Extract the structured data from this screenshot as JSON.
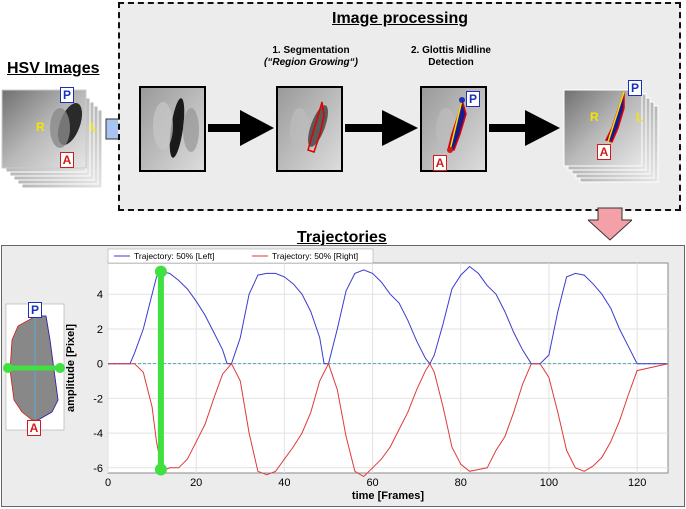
{
  "hsv": {
    "title": "HSV Images",
    "label_p": "P",
    "label_r": "R",
    "label_l": "L",
    "label_a": "A"
  },
  "processing": {
    "title": "Image processing",
    "step1_line1": "1. Segmentation",
    "step1_line2": "(“Region Growing“)",
    "step2_line1": "2. Glottis Midline",
    "step2_line2": "Detection",
    "result_p": "P",
    "result_r": "R",
    "result_l": "L",
    "result_a": "A"
  },
  "trajectories": {
    "title": "Trajectories",
    "inset_p": "P",
    "inset_a": "A"
  },
  "colors": {
    "left": "#3b3bd0",
    "right": "#e03a3a",
    "highlight": "#3fe03f",
    "arrow_fill": "#a8c4f0",
    "down_arrow_fill": "#f4a0a8"
  },
  "chart_data": {
    "type": "line",
    "title": "",
    "xlabel": "time [Frames]",
    "ylabel": "amplitude [Pixel]",
    "xlim": [
      0,
      127
    ],
    "ylim": [
      -6.3,
      5.8
    ],
    "xticks": [
      0,
      20,
      40,
      60,
      80,
      100,
      120
    ],
    "yticks": [
      4,
      2,
      0,
      -2,
      -4,
      -6
    ],
    "xtick_labels": [
      "0",
      "20",
      "40",
      "60",
      "80",
      "100",
      "120"
    ],
    "ytick_labels": [
      "4",
      "2",
      "0",
      "-2",
      "-4",
      "-6"
    ],
    "grid": true,
    "legend_position": "top",
    "series": [
      {
        "name": "Trajectory: 50% [Left]",
        "x": [
          0,
          5,
          6,
          8,
          10,
          11,
          12,
          14,
          16,
          18,
          20,
          22,
          24,
          26,
          27,
          28,
          30,
          32,
          34,
          36,
          38,
          40,
          42,
          44,
          46,
          48,
          49,
          50,
          52,
          54,
          56,
          58,
          60,
          62,
          64,
          66,
          68,
          70,
          72,
          73,
          74,
          76,
          78,
          80,
          82,
          84,
          86,
          88,
          90,
          92,
          94,
          96,
          97,
          98,
          100,
          102,
          104,
          106,
          108,
          110,
          112,
          114,
          116,
          118,
          120,
          127
        ],
        "y": [
          0,
          0,
          0.6,
          2.0,
          4.0,
          5.0,
          5.3,
          5.2,
          4.8,
          4.3,
          3.6,
          2.8,
          1.8,
          0.8,
          0,
          0,
          1.5,
          4.0,
          5.1,
          5.2,
          5.2,
          5.0,
          4.6,
          4.0,
          3.0,
          1.5,
          0,
          0,
          2.0,
          4.2,
          5.2,
          5.4,
          5.2,
          4.7,
          4.0,
          3.5,
          2.5,
          1.3,
          0.3,
          0,
          0.5,
          2.3,
          4.3,
          5.1,
          5.6,
          5.2,
          4.5,
          4.0,
          3.0,
          1.8,
          0.8,
          0,
          0,
          0,
          0.5,
          3.0,
          5.0,
          5.2,
          5.1,
          4.6,
          4.0,
          3.2,
          2.0,
          1.0,
          0,
          0
        ]
      },
      {
        "name": "Trajectory: 50% [Right]",
        "x": [
          0,
          6,
          8,
          10,
          11,
          12,
          13,
          14,
          16,
          18,
          20,
          22,
          24,
          26,
          28,
          30,
          32,
          34,
          36,
          38,
          40,
          42,
          44,
          46,
          48,
          50,
          52,
          54,
          56,
          58,
          60,
          62,
          64,
          66,
          68,
          70,
          72,
          73,
          74,
          76,
          78,
          80,
          82,
          84,
          86,
          88,
          90,
          92,
          94,
          96,
          98,
          100,
          102,
          104,
          106,
          108,
          110,
          112,
          114,
          116,
          118,
          120,
          127
        ],
        "y": [
          0,
          0,
          -0.5,
          -2.5,
          -4.5,
          -5.8,
          -6.1,
          -6.0,
          -6.0,
          -5.5,
          -4.5,
          -3.5,
          -2.0,
          -0.6,
          0,
          -1.0,
          -4.0,
          -6.2,
          -6.4,
          -6.2,
          -5.5,
          -4.8,
          -4.0,
          -2.8,
          -1.0,
          0,
          -1.5,
          -4.2,
          -6.2,
          -6.5,
          -6.0,
          -5.5,
          -4.8,
          -3.8,
          -2.8,
          -1.5,
          -0.4,
          0,
          -0.5,
          -2.5,
          -4.8,
          -5.8,
          -6.2,
          -6.1,
          -6.0,
          -5.0,
          -4.2,
          -2.8,
          -1.2,
          0,
          0,
          -0.8,
          -2.8,
          -5.0,
          -6.0,
          -6.2,
          -5.9,
          -5.4,
          -4.5,
          -3.3,
          -1.8,
          -0.4,
          0
        ]
      }
    ],
    "highlight_frame": 12,
    "highlight_range": [
      -6.1,
      5.3
    ]
  }
}
